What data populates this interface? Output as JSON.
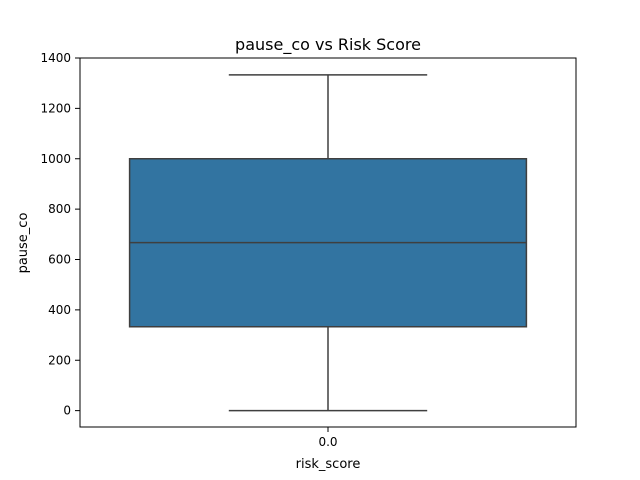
{
  "chart_data": {
    "type": "box",
    "title": "pause_co vs Risk Score",
    "xlabel": "risk_score",
    "ylabel": "pause_co",
    "categories": [
      "0.0"
    ],
    "boxes": [
      {
        "category": "0.0",
        "min": 0,
        "q1": 333,
        "median": 667,
        "q3": 1000,
        "max": 1333
      }
    ],
    "ylim": [
      -65,
      1400
    ],
    "yticks": [
      0,
      200,
      400,
      600,
      800,
      1000,
      1200,
      1400
    ],
    "grid": false,
    "colors": {
      "box_fill": "#3274a1",
      "line": "#3f3f3f",
      "frame": "#000000"
    }
  }
}
